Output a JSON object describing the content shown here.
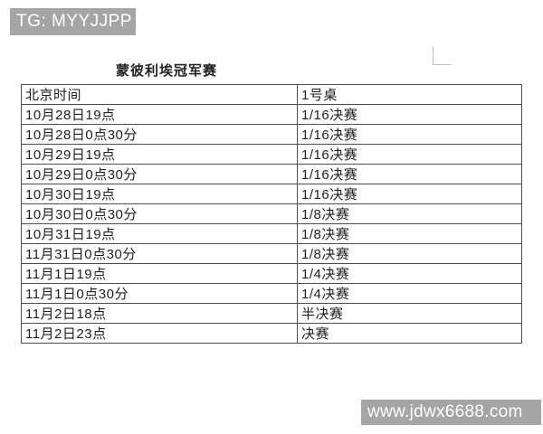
{
  "watermark_top": {
    "label": "TG: MYYJJPP"
  },
  "watermark_bottom": {
    "label": "www.jdwx6688.com"
  },
  "title": "蒙彼利埃冠军赛",
  "table": {
    "headers": [
      "北京时间",
      "1号桌"
    ],
    "rows": [
      [
        "10月28日19点",
        "1/16决赛"
      ],
      [
        "10月28日0点30分",
        "1/16决赛"
      ],
      [
        "10月29日19点",
        "1/16决赛"
      ],
      [
        "10月29日0点30分",
        "1/16决赛"
      ],
      [
        "10月30日19点",
        "1/16决赛"
      ],
      [
        "10月30日0点30分",
        "1/8决赛"
      ],
      [
        "10月31日19点",
        "1/8决赛"
      ],
      [
        "11月31日0点30分",
        "1/8决赛"
      ],
      [
        "11月1日19点",
        "1/4决赛"
      ],
      [
        "11月1日0点30分",
        "1/4决赛"
      ],
      [
        "11月2日18点",
        "半决赛"
      ],
      [
        "11月2日23点",
        "决赛"
      ]
    ]
  },
  "colors": {
    "badge_bg": "#a5a5a5",
    "table_border": "#4d4d4d",
    "text": "#1f1f1f"
  }
}
